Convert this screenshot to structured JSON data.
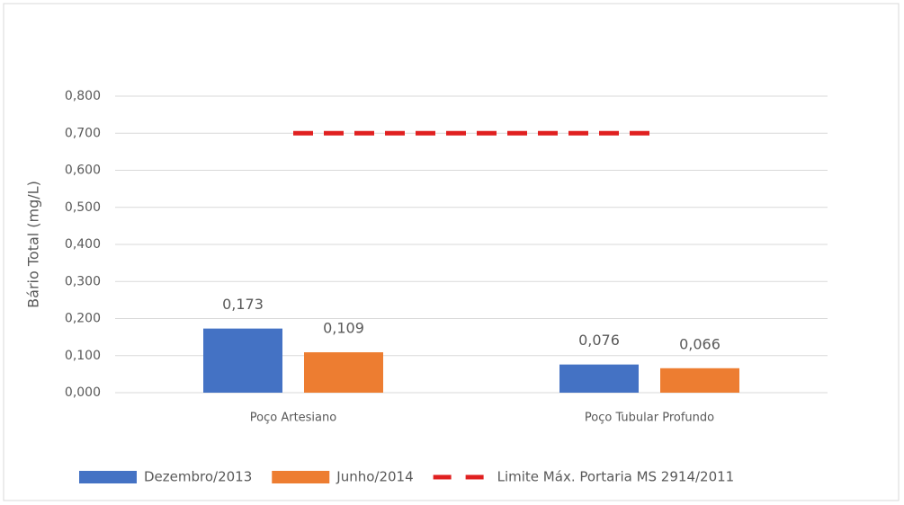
{
  "chart_data": {
    "type": "bar",
    "y_label": "Bário Total (mg/L)",
    "categories": [
      "Poço Artesiano",
      "Poço Tubular Profundo"
    ],
    "series": [
      {
        "name": "Dezembro/2013",
        "color": "#4472c4",
        "values": [
          0.173,
          0.076
        ],
        "value_labels": [
          "0,173",
          "0,076"
        ]
      },
      {
        "name": "Junho/2014",
        "color": "#ed7d31",
        "values": [
          0.109,
          0.066
        ],
        "value_labels": [
          "0,109",
          "0,066"
        ]
      },
      {
        "name": "Limite Máx. Portaria MS 2914/2011",
        "type": "line",
        "color": "#e02020",
        "values": [
          0.7,
          0.7
        ]
      }
    ],
    "ylim": [
      0,
      0.8
    ],
    "yticks": [
      {
        "value": 0,
        "label": "0,000"
      },
      {
        "value": 0.1,
        "label": "0,100"
      },
      {
        "value": 0.2,
        "label": "0,200"
      },
      {
        "value": 0.3,
        "label": "0,300"
      },
      {
        "value": 0.4,
        "label": "0,400"
      },
      {
        "value": 0.5,
        "label": "0,500"
      },
      {
        "value": 0.6,
        "label": "0,600"
      },
      {
        "value": 0.7,
        "label": "0,700"
      },
      {
        "value": 0.8,
        "label": "0,800"
      }
    ],
    "grid": true,
    "legend": "bottom"
  }
}
